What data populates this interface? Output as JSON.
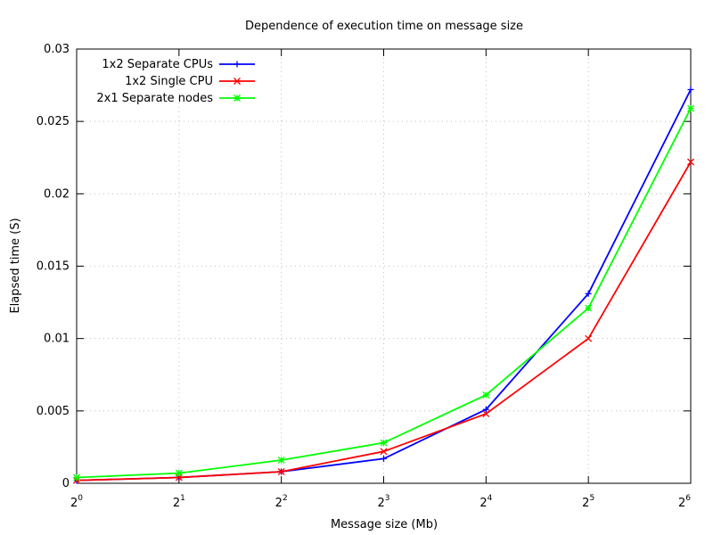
{
  "chart_data": {
    "type": "line",
    "title": "Dependence of execution time on message size",
    "xlabel": "Message size (Mb)",
    "ylabel": "Elapsed time (S)",
    "x_scale": "log2",
    "x": [
      1,
      2,
      4,
      8,
      16,
      32,
      64
    ],
    "x_tick_bases": [
      "2",
      "2",
      "2",
      "2",
      "2",
      "2",
      "2"
    ],
    "x_tick_exponents": [
      "0",
      "1",
      "2",
      "3",
      "4",
      "5",
      "6"
    ],
    "ylim": [
      0,
      0.03
    ],
    "y_ticks": [
      0,
      0.005,
      0.01,
      0.015,
      0.02,
      0.025,
      0.03
    ],
    "y_tick_labels": [
      "0",
      "0.005",
      "0.01",
      "0.015",
      "0.02",
      "0.025",
      "0.03"
    ],
    "grid": true,
    "legend_position": "top-left",
    "series": [
      {
        "name": "1x2 Separate CPUs",
        "color": "#0000ff",
        "marker": "plus",
        "values": [
          0.0002,
          0.0004,
          0.0008,
          0.0017,
          0.0051,
          0.0131,
          0.0272
        ]
      },
      {
        "name": "1x2 Single CPU",
        "color": "#ff0000",
        "marker": "cross",
        "values": [
          0.0002,
          0.0004,
          0.0008,
          0.0022,
          0.0048,
          0.01,
          0.0222
        ]
      },
      {
        "name": "2x1 Separate nodes",
        "color": "#00ff00",
        "marker": "star",
        "values": [
          0.0004,
          0.0007,
          0.0016,
          0.0028,
          0.0061,
          0.0121,
          0.0259
        ]
      }
    ]
  }
}
